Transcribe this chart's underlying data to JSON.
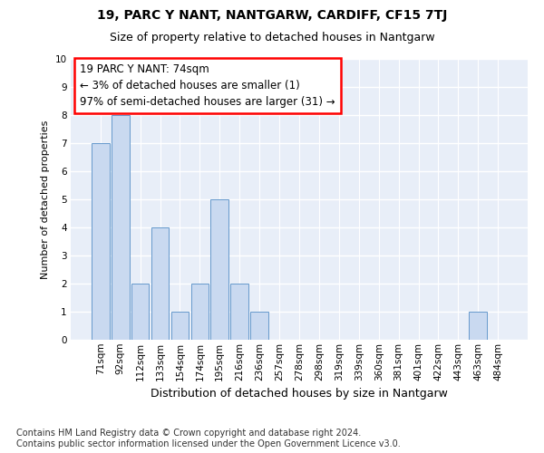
{
  "title1": "19, PARC Y NANT, NANTGARW, CARDIFF, CF15 7TJ",
  "title2": "Size of property relative to detached houses in Nantgarw",
  "xlabel": "Distribution of detached houses by size in Nantgarw",
  "ylabel": "Number of detached properties",
  "categories": [
    "71sqm",
    "92sqm",
    "112sqm",
    "133sqm",
    "154sqm",
    "174sqm",
    "195sqm",
    "216sqm",
    "236sqm",
    "257sqm",
    "278sqm",
    "298sqm",
    "319sqm",
    "339sqm",
    "360sqm",
    "381sqm",
    "401sqm",
    "422sqm",
    "443sqm",
    "463sqm",
    "484sqm"
  ],
  "values": [
    7,
    8,
    2,
    4,
    1,
    2,
    5,
    2,
    1,
    0,
    0,
    0,
    0,
    0,
    0,
    0,
    0,
    0,
    0,
    1,
    0
  ],
  "bar_color": "#c9d9f0",
  "bar_edge_color": "#6699cc",
  "annotation_line1": "19 PARC Y NANT: 74sqm",
  "annotation_line2": "← 3% of detached houses are smaller (1)",
  "annotation_line3": "97% of semi-detached houses are larger (31) →",
  "annotation_box_facecolor": "white",
  "annotation_box_edgecolor": "red",
  "ylim_max": 10,
  "background_color": "#e8eef8",
  "grid_color": "#ffffff",
  "title1_fontsize": 10,
  "title2_fontsize": 9,
  "ylabel_fontsize": 8,
  "xlabel_fontsize": 9,
  "annotation_fontsize": 8.5,
  "tick_fontsize": 7.5,
  "footnote": "Contains HM Land Registry data © Crown copyright and database right 2024.\nContains public sector information licensed under the Open Government Licence v3.0.",
  "footnote_fontsize": 7
}
